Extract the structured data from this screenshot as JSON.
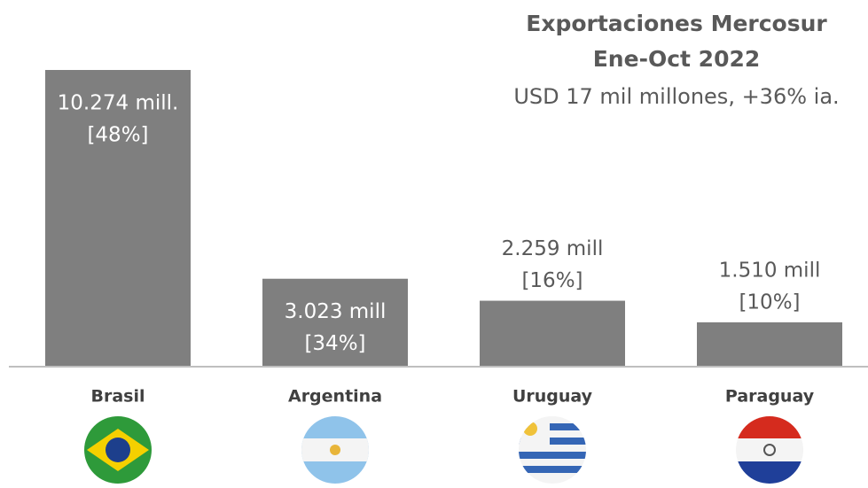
{
  "chart_data": {
    "type": "bar",
    "title": "Exportaciones Mercosur",
    "title_line2": "Ene-Oct 2022",
    "subtitle": "USD 17 mil millones, +36% ia.",
    "categories": [
      "Brasil",
      "Argentina",
      "Uruguay",
      "Paraguay"
    ],
    "values": [
      10274,
      3023,
      2259,
      1510
    ],
    "value_labels": [
      "10.274 mill.",
      "3.023 mill",
      "2.259 mill",
      "1.510  mill"
    ],
    "share_labels": [
      "[48%]",
      "[34%]",
      "[16%]",
      "[10%]"
    ],
    "color": "#7f7f7f"
  }
}
